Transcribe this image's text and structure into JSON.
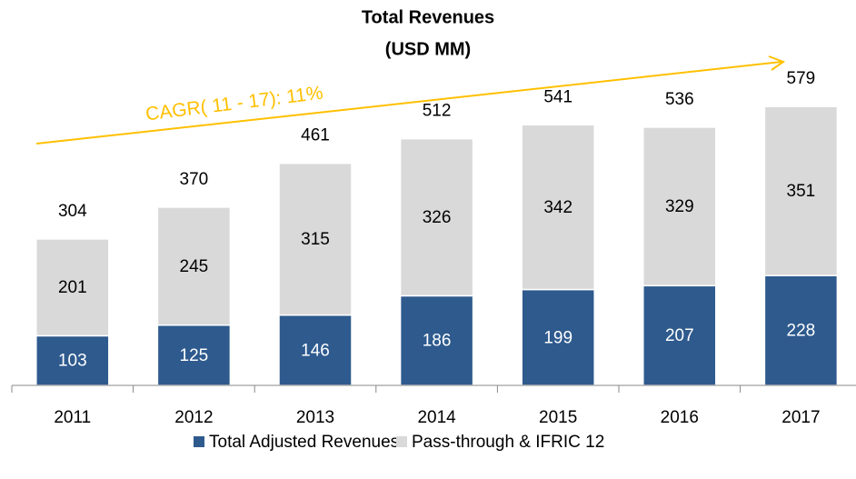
{
  "chart_data": {
    "type": "stacked_bar",
    "title": "Total Revenues",
    "subtitle": "(USD MM)",
    "annotation": "CAGR( 11 - 17): 11%",
    "annotation_color": "#ffc000",
    "categories": [
      "2011",
      "2012",
      "2013",
      "2014",
      "2015",
      "2016",
      "2017"
    ],
    "series": [
      {
        "name": "Total Adjusted Revenues",
        "color": "#2e5a8e",
        "values": [
          103,
          125,
          146,
          186,
          199,
          207,
          228
        ]
      },
      {
        "name": "Pass-through & IFRIC 12",
        "color": "#d9d9d9",
        "values": [
          201,
          245,
          315,
          326,
          342,
          329,
          351
        ]
      }
    ],
    "totals": [
      304,
      370,
      461,
      512,
      541,
      536,
      579
    ]
  }
}
